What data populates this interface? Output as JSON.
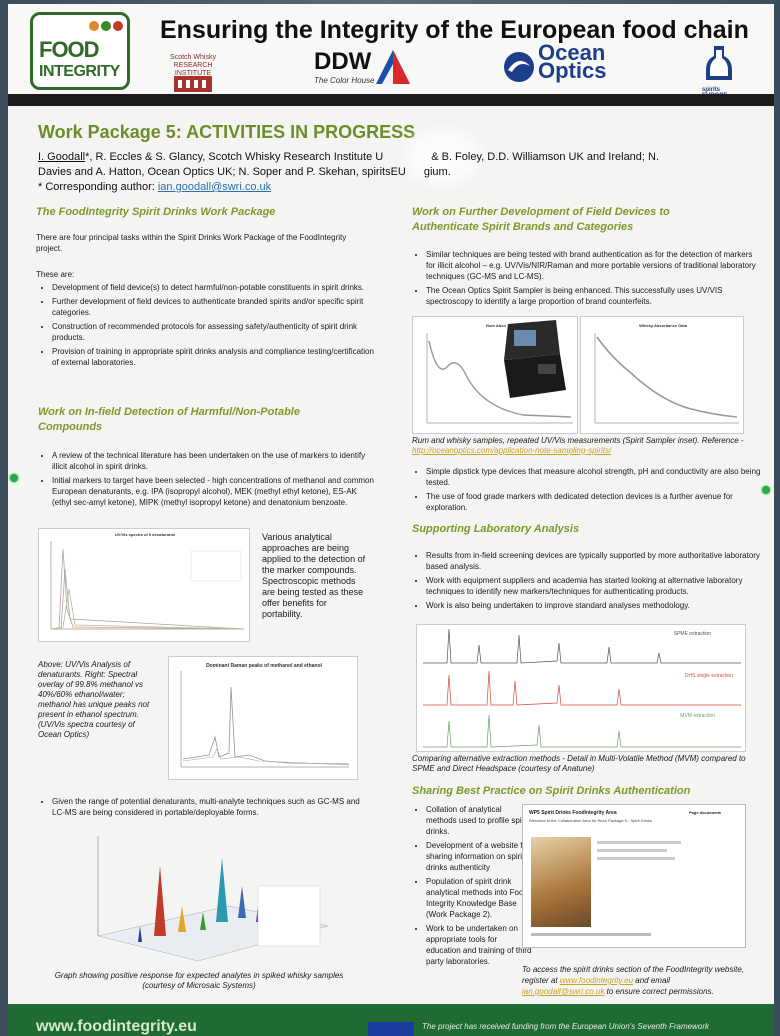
{
  "header": {
    "title": "Ensuring the Integrity of the European food chain",
    "food_integrity_logo": [
      "FOOD",
      "INTEGRITY"
    ],
    "swri_logo": "Scotch Whisky RESEARCH INSTITUTE",
    "ddw_logo": "DDW",
    "ddw_sub": "The Color House",
    "ocean_optics_logo": [
      "Ocean",
      "Optics"
    ],
    "spirits_logo": "spirits EUROPE"
  },
  "poster_title": "Work Package 5: ACTIVITIES IN PROGRESS",
  "authors": {
    "lead": "I. Goodall",
    "line1_rest": "*, R. Eccles & S. Glancy, Scotch Whisky Research Institute U",
    "line1_tail": "& B. Foley, D.D. Williamson UK and Ireland; N.",
    "line2": "Davies and A. Hatton, Ocean Optics UK; N. Soper and P. Skehan, spiritsEU",
    "line2_tail": "gium.",
    "corresponding_label": "* Corresponding author: ",
    "email": "ian.goodall@swri.co.uk"
  },
  "left": {
    "s1_title": "The FoodIntegrity Spirit Drinks Work Package",
    "s1_intro": "There are four principal tasks within the Spirit Drinks Work Package of the FoodIntegrity project.",
    "s1_these": "These are:",
    "s1_bullets": [
      "Development of field device(s) to detect harmful/non-potable constituents in spirit drinks.",
      "Further development of field devices to authenticate branded spirits and/or specific spirit categories.",
      "Construction of recommended protocols for assessing safety/authenticity of spirit drink products.",
      "Provision of training in appropriate spirit drinks analysis and compliance testing/certification of external laboratories."
    ],
    "s2_title": "Work on In-field Detection of Harmful/Non-Potable Compounds",
    "s2_bullets": [
      "A review of the technical literature has been undertaken on the use of markers to identify illicit alcohol in spirit drinks.",
      "Initial markers to target have been selected - high concentrations of methanol and common European denaturants, e.g. IPA (isopropyl alcohol), MEK (methyl ethyl ketone), ES-AK (ethyl sec-amyl ketone), MIPK (methyl isopropyl ketone) and denatonium benzoate."
    ],
    "uv_chart_title": "UV/Vis spectra of 5 denaturants",
    "uv_side_text": "Various analytical approaches are being applied to the detection of the marker compounds. Spectroscopic methods are being tested as these offer benefits for portability.",
    "raman_caption": "Above: UV/Vis Analysis of denaturants. Right: Spectral overlay of 99.8% methanol vs 40%/60% ethanol/water; methanol has unique peaks not present in ethanol spectrum. (UV/Vis spectra courtesy of Ocean Optics)",
    "raman_chart_title": "Dominant Raman peaks of methanol and ethanol",
    "s2_bullet3": "Given the range of potential denaturants, multi-analyte techniques such as GC-MS and LC-MS are being considered in portable/deployable forms.",
    "graph3d_caption": "Graph showing positive response for expected analytes in spiked whisky samples (courtesy of Microsaic Systems)"
  },
  "right": {
    "s1_title": "Work on Further Development of Field Devices to Authenticate Spirit Brands and Categories",
    "s1_bullets": [
      "Similar techniques are being tested with brand authentication as for the detection of markers for illicit alcohol – e.g. UV/Vis/NIR/Raman and more portable versions of traditional laboratory techniques (GC-MS and LC-MS).",
      "The Ocean Optics Spirit Sampler is being enhanced. This successfully uses UV/VIS spectroscopy to identify a large proportion of brand counterfeits."
    ],
    "rum_chart_title": "Rum Absn",
    "whisky_chart_title": "Whisky Absorbance Data",
    "sampler_caption": "Rum and whisky samples, repeated UV/Vis measurements (Spirit Sampler inset). Reference - ",
    "sampler_link": "http://oceanoptics.com/application-note-sampling-spirits/",
    "s1_bullets2": [
      "Simple dipstick type devices that measure alcohol strength, pH and conductivity are also being tested.",
      "The use of food grade markers with dedicated detection devices is a further avenue for exploration."
    ],
    "s2_title": "Supporting Laboratory Analysis",
    "s2_bullets": [
      "Results from in-field screening devices are typically supported by more authoritative laboratory based analysis.",
      "Work with equipment suppliers and academia has started looking at alternative laboratory techniques to identify new markers/techniques for authenticating products.",
      "Work is also being undertaken to improve standard analyses methodology."
    ],
    "chrom_labels": [
      "SPME extraction",
      "DHS single extraction",
      "MVM extraction"
    ],
    "chrom_caption": "Comparing alternative extraction methods - Detail in Multi-Volatile Method (MVM) compared to SPME and Direct Headspace (courtesy of Anatune)",
    "s3_title": "Sharing Best Practice on Spirit Drinks Authentication",
    "s3_bullets": [
      "Collation of analytical methods used to profile spirit drinks.",
      "Development of a website for sharing information on spirit drinks authenticity",
      "Population of spirit drink analytical methods into Food Integrity Knowledge Base (Work Package 2).",
      "Work to be undertaken on appropriate tools for education and training of third party laboratories."
    ],
    "web_title": "WP5 Spirit Drinks FoodIntegrity Area",
    "web_sub": "Welcome to the Collaboration Area for Work Package 5 - Spirit Drinks",
    "web_docs": "Page documents",
    "access_pre": "To access the spirit drinks section of the FoodIntegrity website, register at ",
    "access_site": "www.foodintegrity.eu",
    "access_mid": " and email ",
    "access_email": "ian.goodall@swri.co.uk",
    "access_post": " to ensure correct permissions."
  },
  "footer": {
    "website": "www.foodintegrity.eu",
    "funding": "The project has received funding from the European Union's Seventh Framework"
  },
  "colors": {
    "accent_green": "#6a8f2a",
    "footer_green": "#1f6b34",
    "link_gold": "#c9a227"
  }
}
